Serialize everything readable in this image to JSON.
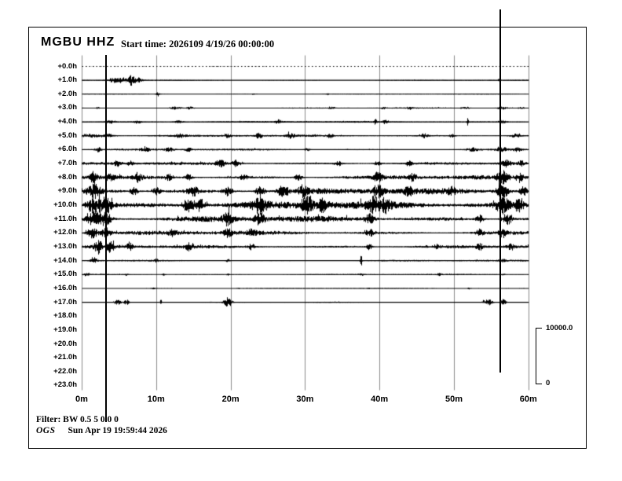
{
  "header": {
    "station": "MGBU HHZ",
    "start_time_label": "Start time: 2026109  4/19/26 00:00:00"
  },
  "footer": {
    "filter": "Filter: BW 0.5 5 0.0 0",
    "agency": "OGS",
    "timestamp": "Sun Apr 19 19:59:44 2026"
  },
  "scale_bar": {
    "max_label": "10000.0",
    "min_label": "0"
  },
  "colors": {
    "trace": "#000000",
    "grid": "#8a8a8a",
    "cursor": "#000000",
    "background": "#ffffff",
    "frame": "#000000"
  },
  "chart_data": {
    "type": "line",
    "title": "MGBU HHZ helicorder seismogram",
    "x_axis": {
      "tick_labels": [
        "0m",
        "10m",
        "20m",
        "30m",
        "40m",
        "50m",
        "60m"
      ],
      "minutes_per_line": 60,
      "grid": true
    },
    "y_axis": {
      "hour_labels": [
        "+0.0h",
        "+1.0h",
        "+2.0h",
        "+3.0h",
        "+4.0h",
        "+5.0h",
        "+6.0h",
        "+7.0h",
        "+8.0h",
        "+9.0h",
        "+10.0h",
        "+11.0h",
        "+12.0h",
        "+13.0h",
        "+14.0h",
        "+15.0h",
        "+16.0h",
        "+17.0h",
        "+18.0h",
        "+19.0h",
        "+20.0h",
        "+21.0h",
        "+22.0h",
        "+23.0h"
      ]
    },
    "amplitude_scale": {
      "max": 10000.0,
      "min": 0
    },
    "time_cursors": [
      {
        "minute": 3.27,
        "extends": "below"
      },
      {
        "minute": 56.2,
        "extends": "above"
      }
    ],
    "rows": [
      {
        "hour": "+0.0h",
        "visible": true,
        "style": "dotted",
        "noise_amp": 0.3,
        "bursts": []
      },
      {
        "hour": "+1.0h",
        "visible": true,
        "style": "solid",
        "noise_amp": 0.45,
        "bursts": [
          [
            4.2,
            0.8,
            3
          ],
          [
            5.5,
            0.6,
            3.5
          ],
          [
            6.6,
            0.35,
            5.5
          ],
          [
            7.4,
            0.7,
            3.5
          ],
          [
            56,
            0.15,
            1.5
          ]
        ]
      },
      {
        "hour": "+2.0h",
        "visible": true,
        "style": "solid",
        "noise_amp": 0.4,
        "bursts": [
          [
            10.2,
            0.25,
            2.8
          ],
          [
            23,
            0.15,
            1
          ],
          [
            33,
            0.2,
            1.2
          ]
        ]
      },
      {
        "hour": "+3.0h",
        "visible": true,
        "style": "solid",
        "noise_amp": 0.7,
        "bursts": [
          [
            2.1,
            0.2,
            1.8
          ],
          [
            12.5,
            0.8,
            1.6
          ],
          [
            14.5,
            0.5,
            1.6
          ],
          [
            33.5,
            0.4,
            1.3
          ],
          [
            40.5,
            0.3,
            1.4
          ],
          [
            44,
            0.4,
            1.6
          ],
          [
            51.5,
            0.6,
            1.6
          ],
          [
            56.5,
            0.8,
            1.8
          ],
          [
            59,
            0.4,
            1.5
          ]
        ]
      },
      {
        "hour": "+4.0h",
        "visible": true,
        "style": "solid",
        "noise_amp": 0.9,
        "bursts": [
          [
            3.8,
            0.6,
            1.8
          ],
          [
            7.5,
            0.5,
            2
          ],
          [
            13,
            0.6,
            1.8
          ],
          [
            26.4,
            0.4,
            2.8
          ],
          [
            39.4,
            0.2,
            3
          ],
          [
            40.7,
            0.3,
            2.2
          ],
          [
            51.8,
            0.12,
            4.5
          ],
          [
            56.5,
            0.5,
            1.8
          ]
        ]
      },
      {
        "hour": "+5.0h",
        "visible": true,
        "style": "solid",
        "noise_amp": 1.2,
        "bursts": [
          [
            1,
            1.5,
            2
          ],
          [
            3.5,
            1,
            2.2
          ],
          [
            13.2,
            0.6,
            2
          ],
          [
            19.6,
            0.5,
            2
          ],
          [
            23.8,
            0.35,
            5
          ],
          [
            28,
            0.5,
            2.5
          ],
          [
            33.3,
            0.4,
            2.5
          ],
          [
            46,
            0.5,
            2.8
          ],
          [
            49.7,
            0.4,
            2
          ],
          [
            58.2,
            0.6,
            2.2
          ]
        ]
      },
      {
        "hour": "+6.0h",
        "visible": true,
        "style": "solid",
        "noise_amp": 1.1,
        "bursts": [
          [
            2.2,
            0.4,
            2.8
          ],
          [
            8.5,
            0.7,
            2.3
          ],
          [
            11.7,
            0.6,
            2.3
          ],
          [
            14.3,
            0.5,
            2
          ],
          [
            30.2,
            0.4,
            2
          ],
          [
            52.5,
            0.8,
            2.2
          ],
          [
            56.5,
            0.8,
            2.4
          ],
          [
            58.5,
            0.5,
            2.2
          ]
        ]
      },
      {
        "hour": "+7.0h",
        "visible": true,
        "style": "solid",
        "noise_amp": 1.6,
        "bursts": [
          [
            4.8,
            0.6,
            3
          ],
          [
            6.5,
            0.4,
            2.5
          ],
          [
            18.6,
            0.7,
            4
          ],
          [
            20.7,
            0.6,
            4
          ],
          [
            34.4,
            0.5,
            3
          ],
          [
            39.7,
            0.5,
            3.2
          ],
          [
            43.9,
            0.4,
            3
          ],
          [
            57,
            0.6,
            4
          ],
          [
            59,
            0.4,
            3.2
          ]
        ]
      },
      {
        "hour": "+8.0h",
        "visible": true,
        "style": "solid",
        "noise_amp": 2.3,
        "bursts": [
          [
            1.5,
            0.5,
            6
          ],
          [
            3.8,
            0.5,
            4
          ],
          [
            7.5,
            0.5,
            4.5
          ],
          [
            11.7,
            0.5,
            4
          ],
          [
            14.3,
            0.5,
            4
          ],
          [
            21.7,
            0.5,
            3
          ],
          [
            29.1,
            0.5,
            4
          ],
          [
            39.7,
            0.6,
            5
          ],
          [
            44.4,
            0.5,
            4
          ],
          [
            56.5,
            0.7,
            7
          ],
          [
            58.7,
            0.5,
            5
          ]
        ]
      },
      {
        "hour": "+9.0h",
        "visible": true,
        "style": "solid",
        "noise_amp": 3.2,
        "bursts": [
          [
            1.7,
            0.8,
            7
          ],
          [
            7,
            0.5,
            5
          ],
          [
            10,
            0.5,
            5
          ],
          [
            14.9,
            0.7,
            6
          ],
          [
            19.6,
            0.6,
            5.5
          ],
          [
            23.9,
            0.6,
            6
          ],
          [
            27,
            0.7,
            7
          ],
          [
            29.7,
            0.6,
            7
          ],
          [
            39.7,
            0.7,
            7
          ],
          [
            43.9,
            0.5,
            5
          ],
          [
            49.7,
            0.5,
            4
          ],
          [
            56.5,
            0.8,
            8
          ],
          [
            59.2,
            0.5,
            6
          ]
        ]
      },
      {
        "hour": "+10.0h",
        "visible": true,
        "style": "solid",
        "noise_amp": 4.2,
        "bursts": [
          [
            1.6,
            1,
            10
          ],
          [
            3.3,
            0.8,
            9
          ],
          [
            14.3,
            0.8,
            8
          ],
          [
            15.9,
            0.7,
            8
          ],
          [
            23.9,
            0.8,
            9
          ],
          [
            30.2,
            0.8,
            9
          ],
          [
            32.3,
            0.6,
            7
          ],
          [
            39.1,
            0.7,
            8
          ],
          [
            40.7,
            0.6,
            7
          ],
          [
            56.5,
            0.9,
            9
          ],
          [
            58.7,
            0.7,
            8
          ]
        ]
      },
      {
        "hour": "+11.0h",
        "visible": true,
        "style": "solid",
        "noise_amp": 3.2,
        "bursts": [
          [
            1.6,
            0.9,
            9
          ],
          [
            3.2,
            0.7,
            8
          ],
          [
            19.6,
            0.6,
            7
          ],
          [
            23.9,
            0.6,
            7
          ],
          [
            38.6,
            0.6,
            6
          ],
          [
            53.4,
            0.5,
            5
          ],
          [
            57.1,
            0.7,
            7
          ]
        ]
      },
      {
        "hour": "+12.0h",
        "visible": true,
        "style": "solid",
        "noise_amp": 2.3,
        "bursts": [
          [
            1.4,
            0.7,
            7
          ],
          [
            3.2,
            0.6,
            6
          ],
          [
            12.2,
            0.5,
            4
          ],
          [
            19.6,
            0.5,
            5
          ],
          [
            22.8,
            0.5,
            4
          ],
          [
            38.6,
            0.5,
            5
          ],
          [
            53.4,
            0.5,
            4
          ],
          [
            56.5,
            0.5,
            5
          ]
        ]
      },
      {
        "hour": "+13.0h",
        "visible": true,
        "style": "solid",
        "noise_amp": 1.8,
        "bursts": [
          [
            2.2,
            0.5,
            8
          ],
          [
            3.8,
            0.5,
            6
          ],
          [
            6.4,
            0.4,
            4
          ],
          [
            14.3,
            0.5,
            4
          ],
          [
            22.8,
            0.4,
            4
          ],
          [
            38.6,
            0.4,
            4
          ],
          [
            47.6,
            0.4,
            3
          ],
          [
            53.4,
            0.4,
            4
          ],
          [
            57.6,
            0.5,
            4
          ]
        ]
      },
      {
        "hour": "+14.0h",
        "visible": true,
        "style": "solid",
        "noise_amp": 0.9,
        "bursts": [
          [
            1.6,
            0.4,
            4
          ],
          [
            10,
            0.3,
            2
          ],
          [
            19.6,
            0.3,
            2
          ],
          [
            37.5,
            0.12,
            7
          ],
          [
            56.5,
            0.4,
            2
          ]
        ]
      },
      {
        "hour": "+15.0h",
        "visible": true,
        "style": "solid",
        "noise_amp": 0.65,
        "bursts": [
          [
            0.6,
            0.3,
            2
          ],
          [
            6,
            0.2,
            1.5
          ],
          [
            11,
            0.2,
            1.5
          ],
          [
            19.6,
            0.2,
            1.5
          ],
          [
            37.5,
            0.3,
            2
          ],
          [
            48,
            0.3,
            1.5
          ],
          [
            56.5,
            0.3,
            1.5
          ]
        ]
      },
      {
        "hour": "+16.0h",
        "visible": true,
        "style": "solid",
        "noise_amp": 0.35,
        "bursts": [
          [
            9.6,
            0.2,
            1.4
          ],
          [
            21,
            0.15,
            1
          ],
          [
            38.5,
            0.15,
            1
          ],
          [
            52,
            0.2,
            1.2
          ]
        ]
      },
      {
        "hour": "+17.0h",
        "visible": true,
        "style": "solid",
        "noise_amp": 0.55,
        "bursts": [
          [
            4.8,
            0.5,
            3.5
          ],
          [
            6,
            0.3,
            4
          ],
          [
            10.6,
            0.12,
            3.5
          ],
          [
            19.6,
            0.5,
            6.5
          ],
          [
            54.5,
            0.6,
            4.5
          ],
          [
            56.6,
            0.4,
            4
          ]
        ]
      },
      {
        "hour": "+18.0h",
        "visible": false,
        "style": "none",
        "noise_amp": 0,
        "bursts": []
      },
      {
        "hour": "+19.0h",
        "visible": false,
        "style": "none",
        "noise_amp": 0,
        "bursts": []
      },
      {
        "hour": "+20.0h",
        "visible": false,
        "style": "none",
        "noise_amp": 0,
        "bursts": []
      },
      {
        "hour": "+21.0h",
        "visible": false,
        "style": "none",
        "noise_amp": 0,
        "bursts": []
      },
      {
        "hour": "+22.0h",
        "visible": false,
        "style": "none",
        "noise_amp": 0,
        "bursts": []
      },
      {
        "hour": "+23.0h",
        "visible": false,
        "style": "none",
        "noise_amp": 0,
        "bursts": []
      }
    ]
  }
}
